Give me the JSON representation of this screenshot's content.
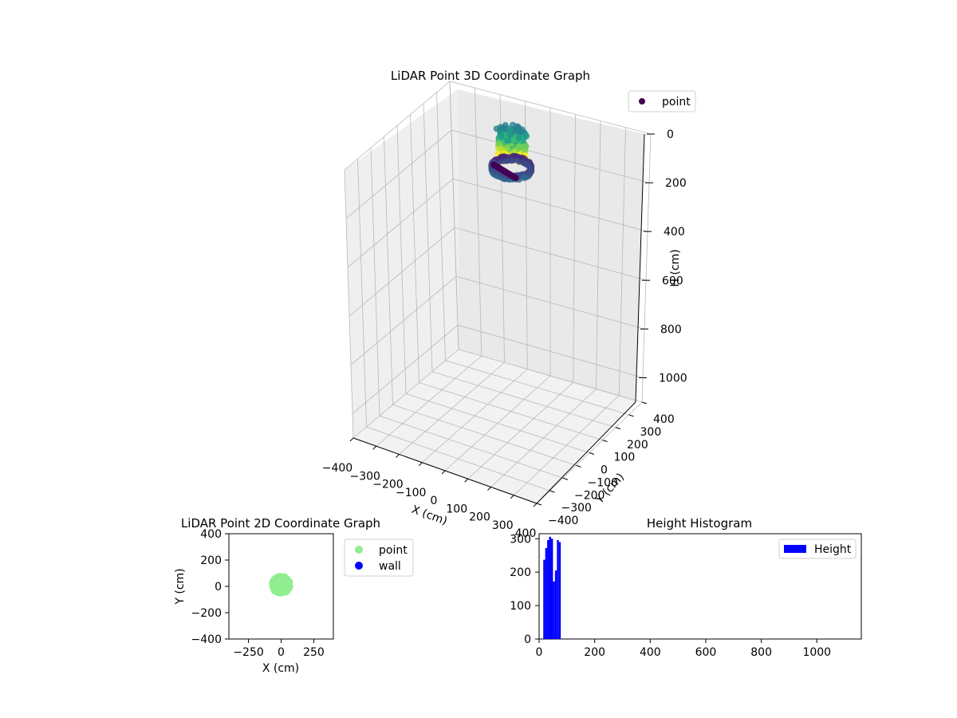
{
  "charts": {
    "scatter3d": {
      "title": "LiDAR Point 3D Coordinate Graph",
      "xlabel": "X (cm)",
      "ylabel": "Y (cm)",
      "zlabel": "H (cm)",
      "legend": {
        "label": "point",
        "color": "#440154"
      },
      "x_ticks": [
        "−400",
        "−300",
        "−200",
        "−100",
        "0",
        "100",
        "200",
        "300",
        "400"
      ],
      "y_ticks": [
        "−400",
        "−300",
        "−200",
        "−100",
        "0",
        "100",
        "200",
        "300",
        "400"
      ],
      "z_ticks": [
        "0",
        "200",
        "400",
        "600",
        "800",
        "1000"
      ]
    },
    "scatter2d": {
      "title": "LiDAR Point 2D Coordinate Graph",
      "xlabel": "X (cm)",
      "ylabel": "Y (cm)",
      "x_ticks": [
        "−250",
        "0",
        "250"
      ],
      "y_ticks": [
        "400",
        "200",
        "0",
        "−200",
        "−400"
      ],
      "legend": [
        {
          "label": "point",
          "color": "#90ee90"
        },
        {
          "label": "wall",
          "color": "#0000ff"
        }
      ]
    },
    "histogram": {
      "title": "Height Histogram",
      "x_ticks": [
        "0",
        "200",
        "400",
        "600",
        "800",
        "1000"
      ],
      "y_ticks": [
        "300",
        "200",
        "100",
        "0"
      ],
      "legend": {
        "label": "Height",
        "color": "#0000ff"
      }
    }
  },
  "chart_data": [
    {
      "type": "scatter",
      "title": "LiDAR Point 3D Coordinate Graph",
      "xlabel": "X (cm)",
      "ylabel": "Y (cm)",
      "zlabel": "H (cm)",
      "xlim": [
        -400,
        400
      ],
      "ylim": [
        -400,
        400
      ],
      "zlim": [
        0,
        1100
      ],
      "z_inverted": true,
      "series": [
        {
          "name": "point",
          "colormap": "viridis",
          "cluster_center": [
            0,
            20,
            100
          ],
          "cluster_radius": 70,
          "h_range": [
            0,
            100
          ]
        }
      ]
    },
    {
      "type": "scatter",
      "title": "LiDAR Point 2D Coordinate Graph",
      "xlabel": "X (cm)",
      "ylabel": "Y (cm)",
      "xlim": [
        -400,
        400
      ],
      "ylim": [
        -400,
        400
      ],
      "series": [
        {
          "name": "point",
          "color": "#90ee90",
          "cluster_center": [
            0,
            20
          ],
          "cluster_radius": 70
        },
        {
          "name": "wall",
          "color": "#0000ff",
          "points": []
        }
      ]
    },
    {
      "type": "bar",
      "title": "Height Histogram",
      "xlim": [
        0,
        1160
      ],
      "ylim": [
        0,
        315
      ],
      "legend": "Height",
      "bins": [
        {
          "x0": 15,
          "x1": 22,
          "count": 237
        },
        {
          "x0": 22,
          "x1": 29,
          "count": 272
        },
        {
          "x0": 29,
          "x1": 36,
          "count": 296
        },
        {
          "x0": 36,
          "x1": 43,
          "count": 306
        },
        {
          "x0": 43,
          "x1": 50,
          "count": 300
        },
        {
          "x0": 50,
          "x1": 57,
          "count": 172
        },
        {
          "x0": 57,
          "x1": 64,
          "count": 205
        },
        {
          "x0": 64,
          "x1": 71,
          "count": 296
        },
        {
          "x0": 71,
          "x1": 78,
          "count": 290
        }
      ]
    }
  ]
}
